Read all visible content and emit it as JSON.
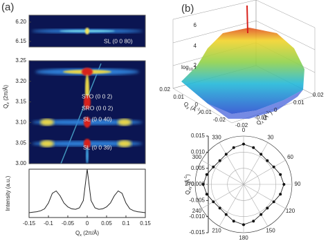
{
  "panel_labels": [
    "(a)",
    "(b)"
  ],
  "rsm": {
    "top": {
      "yticks": [
        "6.20",
        "6.15"
      ],
      "label": "SL (0 0 80)"
    },
    "main": {
      "yticks": [
        "3.25",
        "3.20",
        "3.15",
        "3.10",
        "3.05",
        "3.00"
      ],
      "labels": [
        "STO (0 0 2)",
        "SRO (0 0 2)",
        "SL (0 0 40)",
        "SL (0 0 39)"
      ]
    },
    "ylabel": {
      "symbol": "Q",
      "sub": "z",
      "unit": " (2π/Å)"
    }
  },
  "surface": {
    "zlabel": {
      "symbol": "log",
      "sub": "10",
      "rest": " I"
    },
    "zticks": [
      "2",
      "4",
      "6"
    ],
    "qy_ticks": [
      "0.02",
      "0.01",
      "0",
      "-0.01",
      "-0.02"
    ],
    "qx_ticks": [
      "-0.02",
      "-0.01",
      "0",
      "0.01",
      "0.02"
    ],
    "qy_label": {
      "symbol": "Q",
      "sub": "y",
      "unit": " (Å",
      "sup": "-1",
      "close": ")"
    },
    "qx_label": {
      "symbol": "Q",
      "sub": "x",
      "unit": " (Å",
      "sup": "-1",
      "close": ")"
    }
  },
  "chart_data": [
    {
      "type": "line",
      "ylabel": "Intensity (a.u.)",
      "xlabel": {
        "symbol": "Q",
        "sub": "x",
        "unit": " (2π/Å)"
      },
      "x": [
        -0.15,
        -0.14,
        -0.13,
        -0.12,
        -0.11,
        -0.1,
        -0.09,
        -0.08,
        -0.07,
        -0.06,
        -0.05,
        -0.04,
        -0.03,
        -0.02,
        -0.01,
        0,
        0.01,
        0.02,
        0.03,
        0.04,
        0.05,
        0.06,
        0.07,
        0.08,
        0.09,
        0.1,
        0.11,
        0.12,
        0.13,
        0.14,
        0.15
      ],
      "values": [
        0.1,
        0.11,
        0.12,
        0.14,
        0.18,
        0.3,
        0.5,
        0.55,
        0.45,
        0.3,
        0.22,
        0.18,
        0.17,
        0.2,
        0.35,
        1.0,
        0.35,
        0.2,
        0.17,
        0.18,
        0.22,
        0.3,
        0.45,
        0.55,
        0.5,
        0.3,
        0.18,
        0.14,
        0.12,
        0.11,
        0.1
      ],
      "color": "#222222",
      "xlim": [
        -0.15,
        0.15
      ],
      "xticks": [
        -0.15,
        -0.1,
        -0.05,
        0,
        0.05,
        0.1,
        0.15
      ],
      "ylim": [
        0,
        1
      ]
    },
    {
      "type": "polar",
      "ylabel": {
        "symbol": "Q",
        "sub": "xy",
        "unit": " (Å",
        "sup": "-1",
        "close": ")"
      },
      "theta": [
        0,
        15,
        30,
        45,
        60,
        75,
        90,
        105,
        120,
        135,
        150,
        165,
        180,
        195,
        210,
        225,
        240,
        255,
        270,
        285,
        300,
        315,
        330,
        345
      ],
      "values": [
        0.0125,
        0.0118,
        0.0108,
        0.0104,
        0.0108,
        0.0118,
        0.0125,
        0.0118,
        0.0108,
        0.0104,
        0.0108,
        0.0118,
        0.0125,
        0.0118,
        0.0108,
        0.0104,
        0.0108,
        0.0118,
        0.0125,
        0.0118,
        0.0108,
        0.0104,
        0.0108,
        0.0118
      ],
      "color": "#111111",
      "rlim": [
        0,
        0.015
      ],
      "yticks": [
        {
          "value": 0.015,
          "label": "0.015"
        },
        {
          "value": 0.01,
          "label": "0.010"
        },
        {
          "value": 0.005,
          "label": "0.005"
        },
        {
          "value": 0,
          "label": "0.000"
        },
        {
          "value": -0.005,
          "label": "-0.005"
        },
        {
          "value": -0.01,
          "label": "-0.010"
        },
        {
          "value": -0.015,
          "label": "-0.015"
        }
      ],
      "thetaticks": [
        0,
        30,
        60,
        90,
        120,
        150,
        180,
        210,
        240,
        270,
        300,
        330
      ]
    }
  ]
}
